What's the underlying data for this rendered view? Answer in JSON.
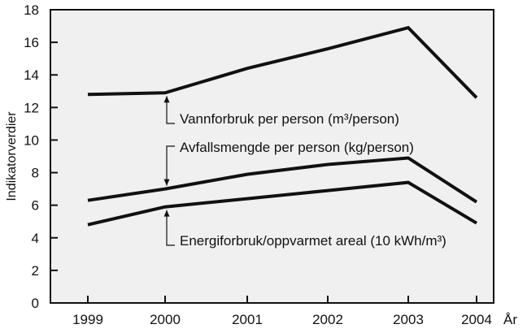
{
  "chart_data": {
    "type": "line",
    "x": [
      "1999",
      "2000",
      "2001",
      "2002",
      "2003",
      "2004"
    ],
    "xlabel": "År",
    "ylabel": "Indikatorverdier",
    "ylim": [
      0,
      18
    ],
    "yticks": [
      0,
      2,
      4,
      6,
      8,
      10,
      12,
      14,
      16,
      18
    ],
    "grid": false,
    "background": "#f0f0f0",
    "line_color": "#111111",
    "series": [
      {
        "id": "vann",
        "label": "Vannforbruk per person (m³/person)",
        "values": [
          12.8,
          12.9,
          14.4,
          15.6,
          16.9,
          12.6
        ]
      },
      {
        "id": "avfall",
        "label": "Avfallsmengde per person (kg/person)",
        "values": [
          6.3,
          7.0,
          7.9,
          8.5,
          8.9,
          6.2
        ]
      },
      {
        "id": "energi",
        "label": "Energiforbruk/oppvarmet areal (10 kWh/m³)",
        "values": [
          4.8,
          5.9,
          6.4,
          6.9,
          7.4,
          4.9
        ]
      }
    ]
  }
}
